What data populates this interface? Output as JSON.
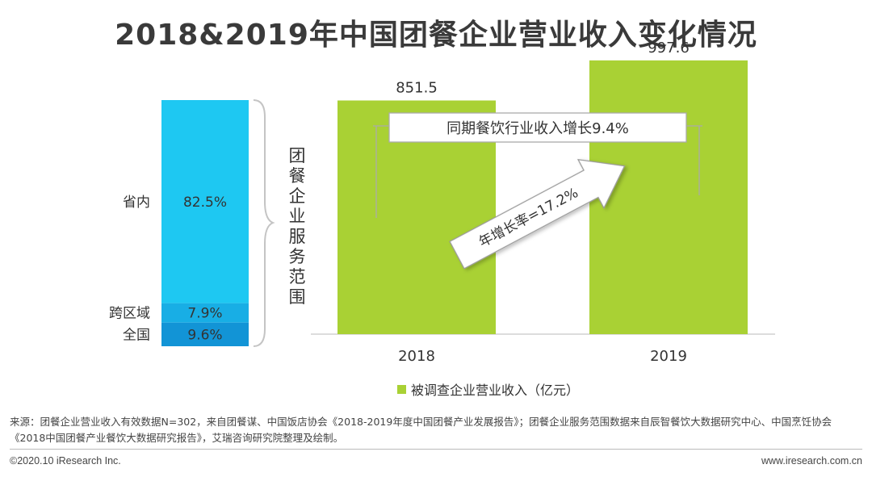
{
  "title": "2018&2019年中国团餐企业营业收入变化情况",
  "chart_data": [
    {
      "type": "bar",
      "orientation": "stacked-vertical",
      "axis_title": "团餐企业服务范围",
      "categories": [
        "省内",
        "跨区域",
        "全国"
      ],
      "values": [
        82.5,
        7.9,
        9.6
      ],
      "value_labels": [
        "82.5%",
        "7.9%",
        "9.6%"
      ],
      "colors": [
        "#1ec8f2",
        "#18aee5",
        "#1294d6"
      ]
    },
    {
      "type": "bar",
      "categories": [
        "2018",
        "2019"
      ],
      "values": [
        851.5,
        997.6
      ],
      "value_labels": [
        "851.5",
        "997.6"
      ],
      "series_name": "被调查企业营业收入（亿元）",
      "color": "#a9d134",
      "ylim": [
        0,
        1100
      ],
      "annotations": {
        "growth_arrow": "年增长率=17.2%",
        "industry_bracket": "同期餐饮行业收入增长9.4%"
      }
    }
  ],
  "footer": {
    "source": "来源：团餐企业营业收入有效数据N=302，来自团餐谋、中国饭店协会《2018-2019年度中国团餐产业发展报告》；团餐企业服务范围数据来自辰智餐饮大数据研究中心、中国烹饪协会《2018中国团餐产业餐饮大数据研究报告》，艾瑞咨询研究院整理及绘制。",
    "copyright": "©2020.10 iResearch Inc.",
    "website": "www.iresearch.com.cn"
  }
}
